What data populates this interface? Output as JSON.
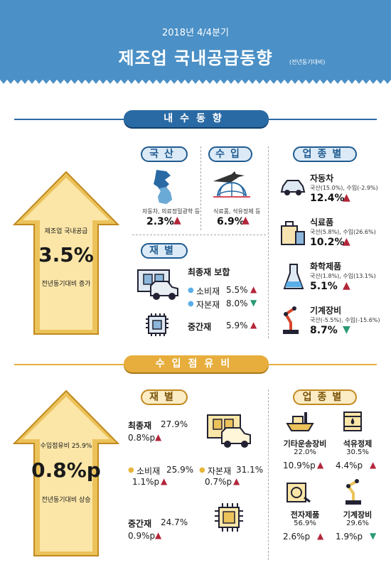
{
  "header": {
    "period": "2018년  4/4분기",
    "title": "제조업 국내공급동향",
    "subtitle": "(전년동기대비)"
  },
  "sections": {
    "domestic": {
      "banner": "내수동향",
      "arrow": {
        "line1": "제조업 국내공급",
        "value": "3.5%",
        "line2": "전년동기대비 증가"
      },
      "domestic_prod": {
        "tag": "국산",
        "caption": "자동차, 의료정밀광학 등",
        "value": "2.3%"
      },
      "imports": {
        "tag": "수입",
        "caption": "식료품, 석유정제 등",
        "value": "6.9%"
      },
      "by_goods": {
        "tag": "재별",
        "final": "최종재 보합",
        "consumer": "소비재",
        "consumer_v": "5.5%",
        "capital": "자본재",
        "capital_v": "8.0%",
        "intermediate": "중간재",
        "intermediate_v": "5.9%"
      },
      "by_industry": {
        "tag": "업종별",
        "items": [
          {
            "name": "자동차",
            "detail": "국산(15.0%), 수입(-2.9%)",
            "value": "12.4%",
            "dir": "up"
          },
          {
            "name": "식료품",
            "detail": "국산(5.8%), 수입(26.6%)",
            "value": "10.2%",
            "dir": "up"
          },
          {
            "name": "화학제품",
            "detail": "국산(1.8%), 수입(13.1%)",
            "value": "5.1%",
            "dir": "up"
          },
          {
            "name": "기계장비",
            "detail": "국산(-5.5%), 수입(-15.6%)",
            "value": "8.7%",
            "dir": "down"
          }
        ]
      }
    },
    "import_share": {
      "banner": "수입점유비",
      "arrow": {
        "line1": "수입점유비 25.9%",
        "value": "0.8%p",
        "line2": "전년동기대비 상승"
      },
      "by_goods": {
        "tag": "재별",
        "final": {
          "label": "최종재",
          "share": "27.9%",
          "change": "0.8%p"
        },
        "consumer": {
          "label": "소비재",
          "share": "25.9%",
          "change": "1.1%p"
        },
        "capital": {
          "label": "자본재",
          "share": "31.1%",
          "change": "0.7%p"
        },
        "intermediate": {
          "label": "중간재",
          "share": "24.7%",
          "change": "0.9%p"
        }
      },
      "by_industry": {
        "tag": "업종별",
        "items": [
          {
            "name": "기타운송장비",
            "share": "22.0%",
            "change": "10.9%p",
            "dir": "up"
          },
          {
            "name": "석유정제",
            "share": "30.5%",
            "change": "4.4%p",
            "dir": "up"
          },
          {
            "name": "전자제품",
            "share": "56.9%",
            "change": "2.6%p",
            "dir": "up"
          },
          {
            "name": "기계장비",
            "share": "29.6%",
            "change": "1.9%p",
            "dir": "down"
          }
        ]
      }
    }
  },
  "colors": {
    "header": "#4b90c6",
    "banner_blue": "#2a6aa4",
    "banner_gold": "#e7ae3d",
    "up": "#b3263a",
    "down": "#2a9a72"
  }
}
